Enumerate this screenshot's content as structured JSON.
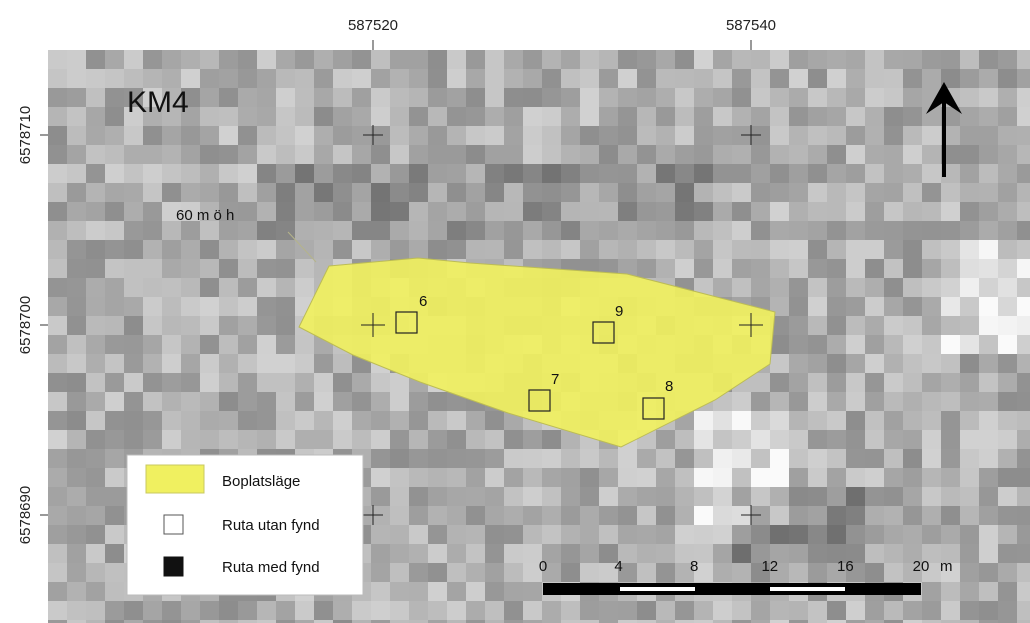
{
  "map": {
    "title": "KM4",
    "elevation_label": "60 m ö h",
    "x_ticks": [
      "587520",
      "587540"
    ],
    "y_ticks": [
      "6578710",
      "6578700",
      "6578690"
    ],
    "north_arrow": "north-arrow-icon",
    "site_color": "#f0f060",
    "squares": [
      {
        "label": "6",
        "has_find": false
      },
      {
        "label": "9",
        "has_find": false
      },
      {
        "label": "7",
        "has_find": false
      },
      {
        "label": "8",
        "has_find": false
      }
    ]
  },
  "legend": {
    "items": [
      {
        "label": "Boplatsläge",
        "color": "#f0f060"
      },
      {
        "label": "Ruta utan fynd",
        "color": "#ffffff"
      },
      {
        "label": "Ruta med fynd",
        "color": "#111111"
      }
    ]
  },
  "scalebar": {
    "labels": [
      "0",
      "4",
      "8",
      "12",
      "16",
      "20"
    ],
    "unit": "m"
  }
}
